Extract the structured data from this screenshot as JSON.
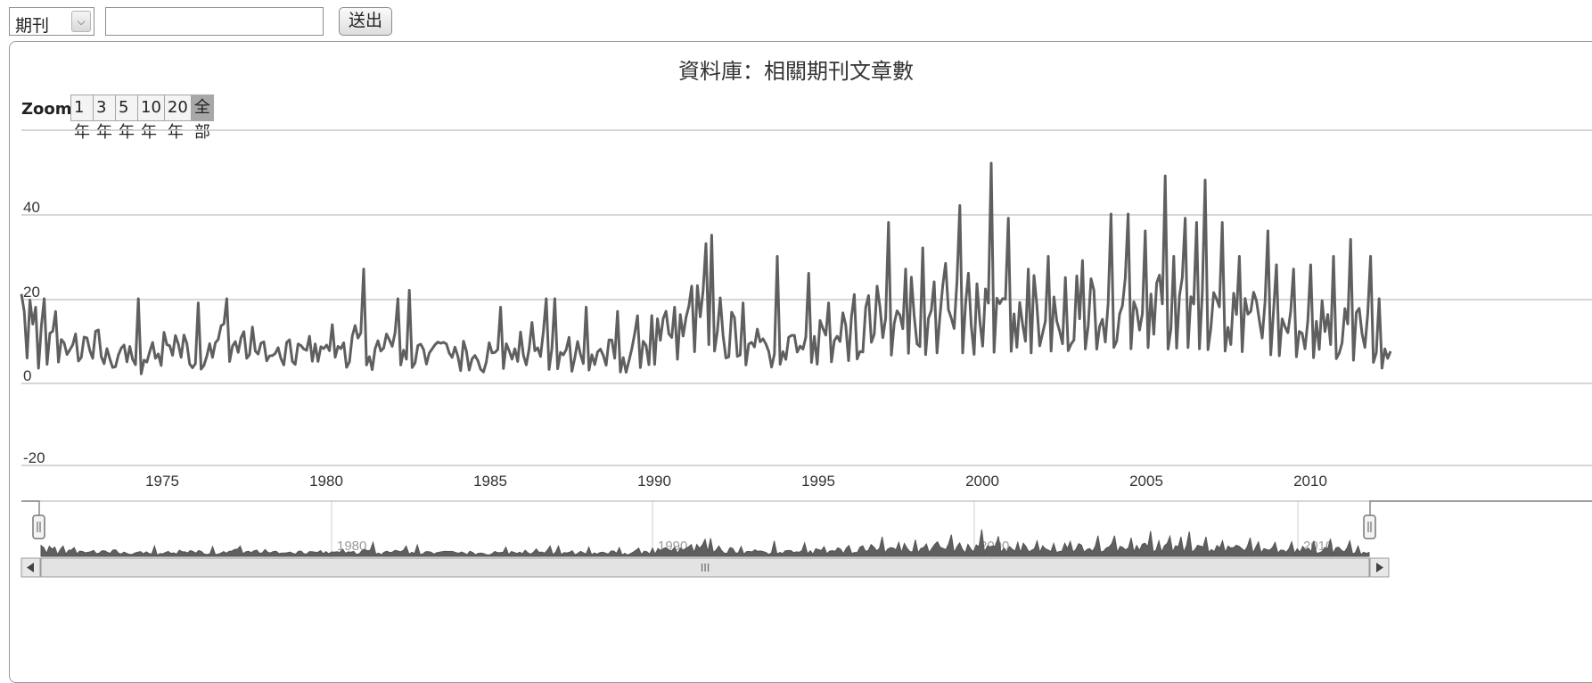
{
  "toolbar": {
    "select_value": "期刊",
    "search_value": "",
    "submit_label": "送出"
  },
  "chart_data": {
    "type": "line",
    "title": "資料庫：相關期刊文章數",
    "xlabel": "",
    "ylabel": "",
    "ylim": [
      -20,
      60
    ],
    "xlim": [
      1972.0,
      2012.0
    ],
    "yticks": [
      "40",
      "20",
      "0",
      "-20"
    ],
    "xticks": [
      "1975",
      "1980",
      "1985",
      "1990",
      "1995",
      "2000",
      "2005",
      "2010"
    ],
    "grid": true,
    "zoom": {
      "label": "Zoom",
      "buttons": [
        "1年",
        "3年",
        "5年",
        "10年",
        "20年",
        "全部"
      ],
      "selected": "全部"
    },
    "navigator": {
      "labels": [
        "1980",
        "1990",
        "2000",
        "2010"
      ],
      "scrollbar_grip": "III"
    },
    "anchors": [
      [
        1972.0,
        16
      ],
      [
        1972.5,
        8
      ],
      [
        1973.0,
        12
      ],
      [
        1973.5,
        7
      ],
      [
        1974.0,
        10
      ],
      [
        1974.5,
        6
      ],
      [
        1975.0,
        7
      ],
      [
        1975.5,
        5
      ],
      [
        1976.0,
        8
      ],
      [
        1976.5,
        10
      ],
      [
        1977.0,
        7
      ],
      [
        1977.5,
        8
      ],
      [
        1978.0,
        12
      ],
      [
        1978.5,
        9
      ],
      [
        1979.0,
        8
      ],
      [
        1979.5,
        6
      ],
      [
        1980.0,
        7
      ],
      [
        1980.5,
        8
      ],
      [
        1981.0,
        9
      ],
      [
        1981.5,
        8
      ],
      [
        1982.0,
        10
      ],
      [
        1982.5,
        8
      ],
      [
        1983.0,
        10
      ],
      [
        1983.5,
        8
      ],
      [
        1984.0,
        9
      ],
      [
        1984.5,
        7
      ],
      [
        1985.0,
        7
      ],
      [
        1985.5,
        6
      ],
      [
        1986.0,
        8
      ],
      [
        1986.5,
        7
      ],
      [
        1987.0,
        9
      ],
      [
        1987.5,
        7
      ],
      [
        1988.0,
        9
      ],
      [
        1988.5,
        7
      ],
      [
        1989.0,
        7
      ],
      [
        1989.5,
        6
      ],
      [
        1990.0,
        8
      ],
      [
        1990.5,
        10
      ],
      [
        1991.0,
        12
      ],
      [
        1991.5,
        14
      ],
      [
        1992.0,
        22
      ],
      [
        1992.5,
        12
      ],
      [
        1993.0,
        10
      ],
      [
        1993.5,
        9
      ],
      [
        1994.0,
        10
      ],
      [
        1994.5,
        10
      ],
      [
        1995.0,
        11
      ],
      [
        1995.5,
        11
      ],
      [
        1996.0,
        12
      ],
      [
        1996.5,
        13
      ],
      [
        1997.0,
        14
      ],
      [
        1997.5,
        15
      ],
      [
        1998.0,
        16
      ],
      [
        1998.5,
        15
      ],
      [
        1999.0,
        17
      ],
      [
        1999.5,
        16
      ],
      [
        2000.0,
        18
      ],
      [
        2000.5,
        16
      ],
      [
        2001.0,
        17
      ],
      [
        2001.5,
        16
      ],
      [
        2002.0,
        17
      ],
      [
        2002.5,
        17
      ],
      [
        2003.0,
        18
      ],
      [
        2003.5,
        18
      ],
      [
        2004.0,
        19
      ],
      [
        2004.5,
        18
      ],
      [
        2005.0,
        19
      ],
      [
        2005.5,
        18
      ],
      [
        2006.0,
        19
      ],
      [
        2006.5,
        18
      ],
      [
        2007.0,
        17
      ],
      [
        2007.5,
        17
      ],
      [
        2008.0,
        16
      ],
      [
        2008.5,
        15
      ],
      [
        2009.0,
        14
      ],
      [
        2009.5,
        14
      ],
      [
        2010.0,
        13
      ],
      [
        2010.5,
        13
      ],
      [
        2011.0,
        12
      ],
      [
        2011.5,
        11
      ],
      [
        2012.0,
        5
      ]
    ],
    "spikes": [
      [
        1972.1,
        17
      ],
      [
        1972.4,
        18
      ],
      [
        1972.7,
        20
      ],
      [
        1973.0,
        17
      ],
      [
        1975.4,
        20
      ],
      [
        1977.2,
        19
      ],
      [
        1978.0,
        20
      ],
      [
        1982.0,
        27
      ],
      [
        1983.0,
        20
      ],
      [
        1983.3,
        22
      ],
      [
        1986.0,
        18
      ],
      [
        1987.3,
        20
      ],
      [
        1987.6,
        20
      ],
      [
        1988.5,
        18
      ],
      [
        1989.4,
        17
      ],
      [
        1990.0,
        16
      ],
      [
        1990.4,
        16
      ],
      [
        1991.1,
        18
      ],
      [
        1991.6,
        23
      ],
      [
        1992.0,
        33
      ],
      [
        1992.2,
        35
      ],
      [
        1993.1,
        19
      ],
      [
        1994.1,
        30
      ],
      [
        1995.0,
        26
      ],
      [
        1995.6,
        19
      ],
      [
        1996.3,
        21
      ],
      [
        1997.3,
        38
      ],
      [
        1997.8,
        27
      ],
      [
        1998.3,
        32
      ],
      [
        1998.7,
        24
      ],
      [
        1999.4,
        42
      ],
      [
        2000.3,
        52
      ],
      [
        2000.8,
        39
      ],
      [
        2001.4,
        27
      ],
      [
        2002.0,
        30
      ],
      [
        2002.5,
        25
      ],
      [
        2003.0,
        29
      ],
      [
        2003.3,
        22
      ],
      [
        2003.8,
        40
      ],
      [
        2004.3,
        40
      ],
      [
        2004.8,
        36
      ],
      [
        2005.4,
        49
      ],
      [
        2005.7,
        30
      ],
      [
        2006.0,
        39
      ],
      [
        2006.3,
        38
      ],
      [
        2006.6,
        48
      ],
      [
        2007.1,
        38
      ],
      [
        2007.6,
        30
      ],
      [
        2008.4,
        36
      ],
      [
        2008.7,
        28
      ],
      [
        2009.2,
        27
      ],
      [
        2009.7,
        28
      ],
      [
        2010.3,
        30
      ],
      [
        2010.8,
        34
      ],
      [
        2011.4,
        30
      ],
      [
        2011.7,
        20
      ]
    ]
  }
}
